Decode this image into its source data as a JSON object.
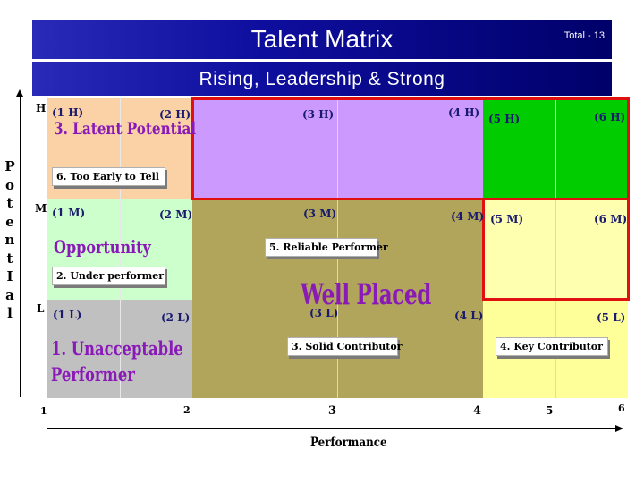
{
  "header": {
    "title": "Talent Matrix",
    "total": "Total - 13"
  },
  "subtitle": "Rising, Leadership & Strong",
  "axis": {
    "y_title_letters": [
      "P",
      "o",
      "t",
      "e",
      "n",
      "t",
      "I",
      "a",
      "l"
    ],
    "y_levels": [
      "H",
      "M",
      "L"
    ],
    "x_ticks": [
      "1",
      "2",
      "3",
      "4",
      "5",
      "6"
    ],
    "x_title": "Performance"
  },
  "cells": {
    "c1h": "(1 H)",
    "c2h": "(2 H)",
    "c3h": "(3 H)",
    "c4h": "(4 H)",
    "c5h": "(5 H)",
    "c6h": "(6 H)",
    "c1m": "(1 M)",
    "c2m": "(2 M)",
    "c3m": "(3 M)",
    "c4m": "(4 M)",
    "c5m": "(5 M)",
    "c6m": "(6 M)",
    "c1l": "(1 L)",
    "c2l": "(2 L)",
    "c3l": "(3 L)",
    "c4l": "(4 L)",
    "c5l": "(5 L)"
  },
  "regions": {
    "latent_potential": "3. Latent Potential",
    "opportunity": "Opportunity",
    "unacceptable_line1": "1. Unacceptable",
    "unacceptable_line2": "Performer",
    "well_placed": "Well Placed"
  },
  "boxes": {
    "too_early": "6. Too Early to Tell",
    "under_performer": "2. Under performer",
    "reliable": "5. Reliable Performer",
    "solid": "3. Solid Contributor",
    "key": "4. Key Contributor"
  },
  "colors": {
    "orange": "#fbd1a6",
    "light_green": "#ccffcc",
    "gray": "#c0c0c0",
    "purple": "#cc99ff",
    "green": "#00cc00",
    "olive": "#b0a55a",
    "light_yellow": "#ffffb0",
    "pale_yellow": "#ffff99",
    "red_frame": "#e01010",
    "title_band": "#0e0e9e"
  }
}
